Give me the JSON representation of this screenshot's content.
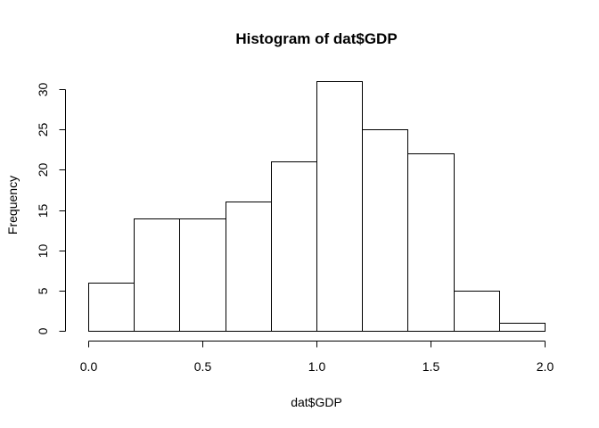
{
  "chart_data": {
    "type": "bar",
    "title": "Histogram of dat$GDP",
    "xlabel": "dat$GDP",
    "ylabel": "Frequency",
    "bins": [
      {
        "x0": 0.0,
        "x1": 0.2,
        "count": 6
      },
      {
        "x0": 0.2,
        "x1": 0.4,
        "count": 14
      },
      {
        "x0": 0.4,
        "x1": 0.6,
        "count": 14
      },
      {
        "x0": 0.6,
        "x1": 0.8,
        "count": 16
      },
      {
        "x0": 0.8,
        "x1": 1.0,
        "count": 21
      },
      {
        "x0": 1.0,
        "x1": 1.2,
        "count": 31
      },
      {
        "x0": 1.2,
        "x1": 1.4,
        "count": 25
      },
      {
        "x0": 1.4,
        "x1": 1.6,
        "count": 22
      },
      {
        "x0": 1.6,
        "x1": 1.8,
        "count": 5
      },
      {
        "x0": 1.8,
        "x1": 2.0,
        "count": 1
      }
    ],
    "xlim": [
      0.0,
      2.0
    ],
    "ylim": [
      0,
      30
    ],
    "x_ticks": [
      {
        "value": 0.0,
        "label": "0.0"
      },
      {
        "value": 0.5,
        "label": "0.5"
      },
      {
        "value": 1.0,
        "label": "1.0"
      },
      {
        "value": 1.5,
        "label": "1.5"
      },
      {
        "value": 2.0,
        "label": "2.0"
      }
    ],
    "y_ticks": [
      {
        "value": 0,
        "label": "0"
      },
      {
        "value": 5,
        "label": "5"
      },
      {
        "value": 10,
        "label": "10"
      },
      {
        "value": 15,
        "label": "15"
      },
      {
        "value": 20,
        "label": "20"
      },
      {
        "value": 25,
        "label": "25"
      },
      {
        "value": 30,
        "label": "30"
      }
    ],
    "grid": false,
    "legend": "none",
    "colors": {
      "bar_fill": "#ffffff",
      "bar_stroke": "#000000"
    }
  }
}
